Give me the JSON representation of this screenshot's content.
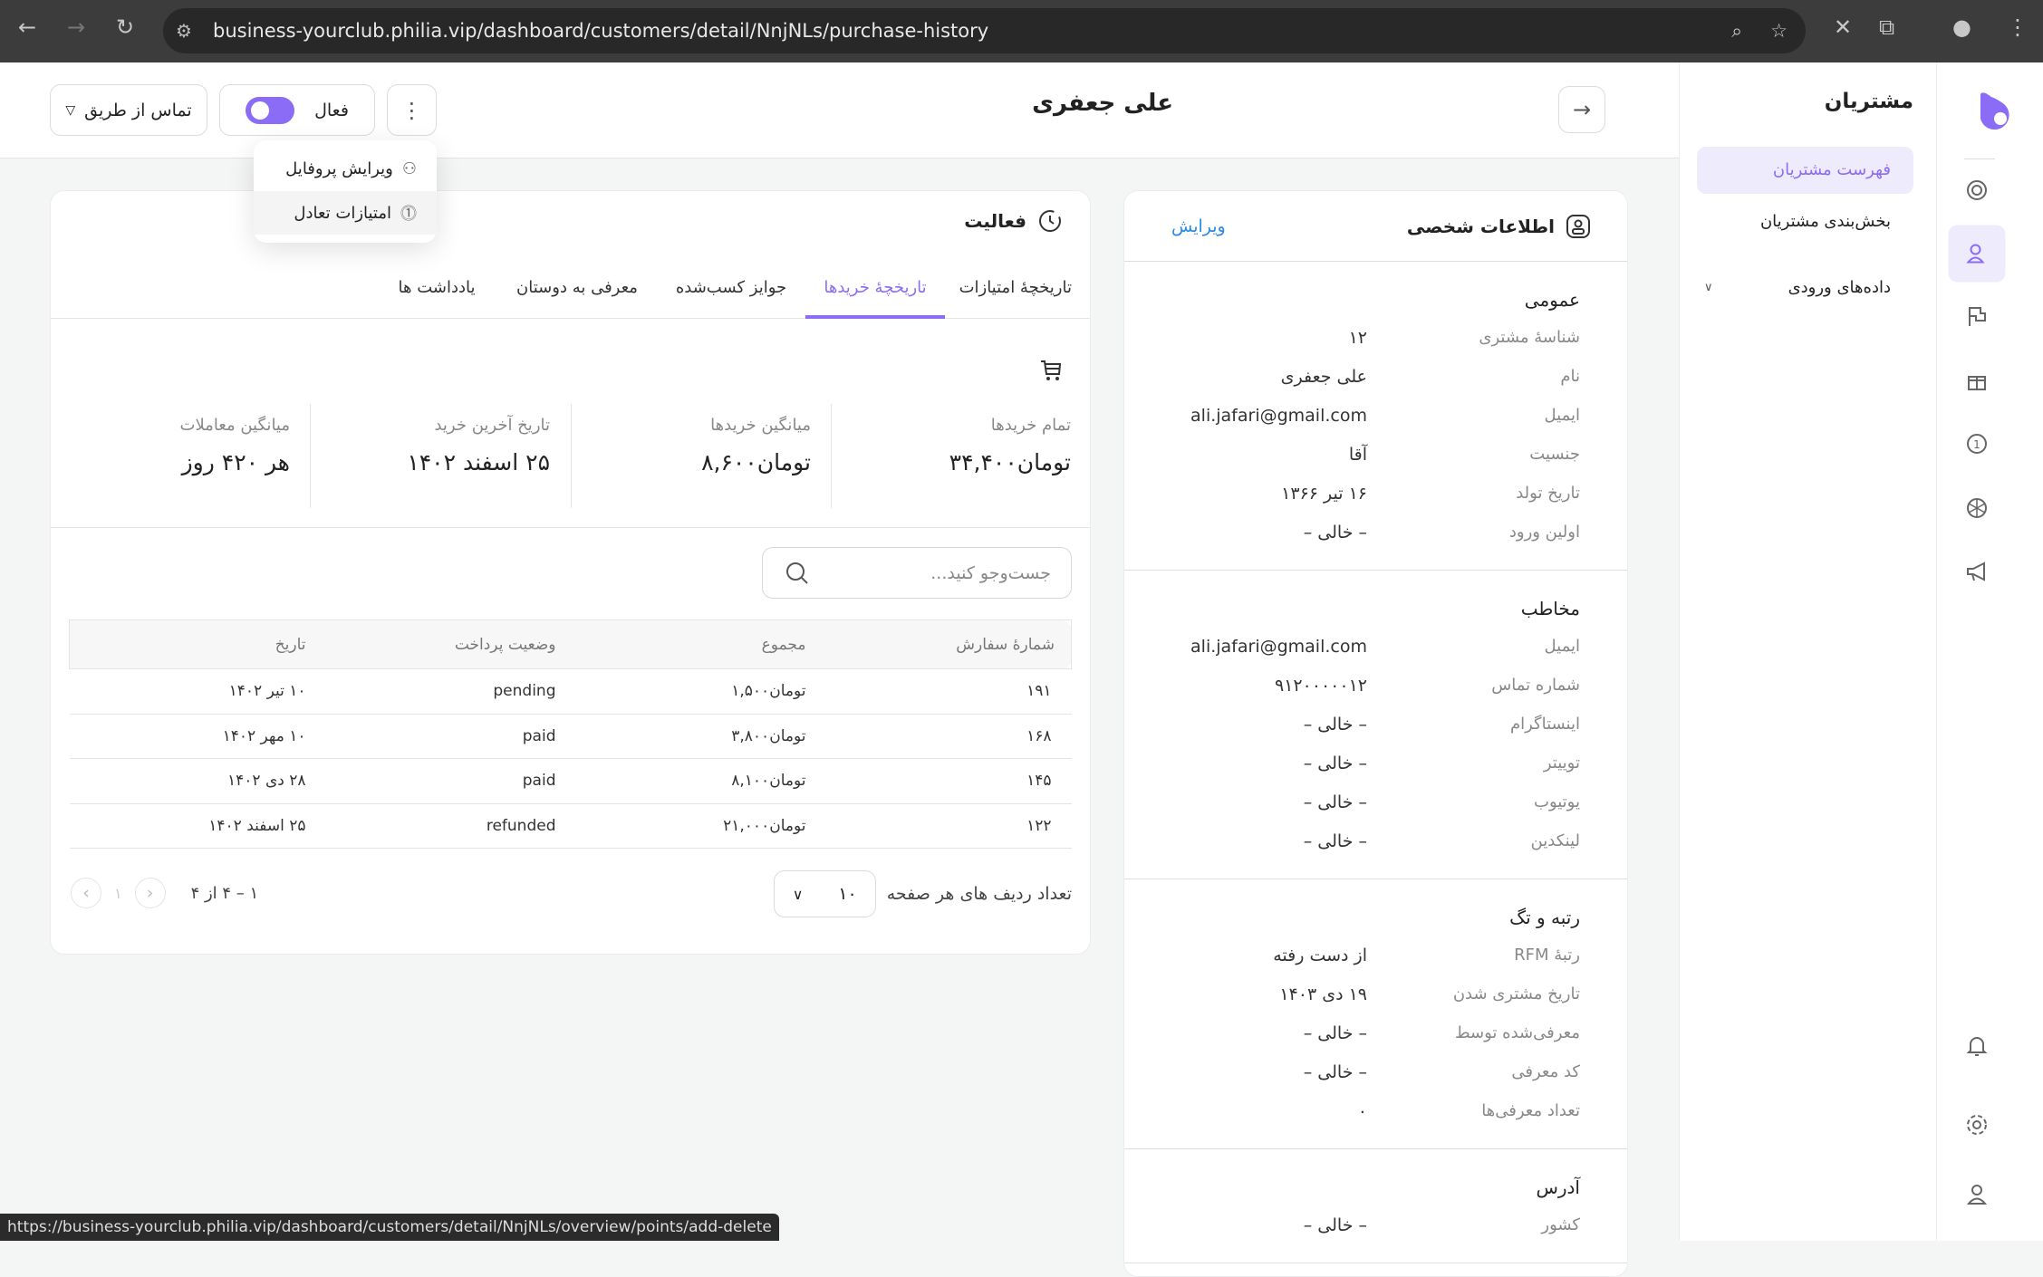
{
  "browser": {
    "url": "business-yourclub.philia.vip/dashboard/customers/detail/NnjNLs/purchase-history",
    "status_url": "https://business-yourclub.philia.vip/dashboard/customers/detail/NnjNLs/overview/points/add-delete"
  },
  "colors": {
    "accent": "#8b6cf6",
    "accent_bg": "#eeebfd",
    "link": "#2b8ae8"
  },
  "header": {
    "customer_name": "علی جعفری",
    "contact_via": "تماس از طریق",
    "status_label": "فعال",
    "status_active": true
  },
  "menu": {
    "items": [
      {
        "label": "ویرایش پروفایل",
        "icon": "user-edit-icon"
      },
      {
        "label": "امتیازات تعادل",
        "icon": "points-icon"
      }
    ]
  },
  "sidebar": {
    "title": "مشتریان",
    "items": [
      {
        "label": "فهرست مشتریان",
        "active": true
      },
      {
        "label": "بخش‌بندی مشتریان"
      },
      {
        "label": "داده‌های ورودی",
        "expandable": true
      }
    ]
  },
  "rail": {
    "icons": [
      "logo",
      "dashboard-icon",
      "customers-icon",
      "campaign-flag-icon",
      "gift-icon",
      "points-icon",
      "wheel-icon",
      "megaphone-icon",
      "bell-icon",
      "settings-icon",
      "profile-icon"
    ]
  },
  "personal": {
    "title": "اطلاعات شخصی",
    "edit": "ویرایش",
    "sections": [
      {
        "title": "عمومی",
        "rows": [
          [
            "شناسهٔ مشتری",
            "۱۲"
          ],
          [
            "نام",
            "علی جعفری"
          ],
          [
            "ایمیل",
            "ali.jafari@gmail.com"
          ],
          [
            "جنسیت",
            "آقا"
          ],
          [
            "تاریخ تولد",
            "۱۶ تیر ۱۳۶۶"
          ],
          [
            "اولین ورود",
            "– خالی –"
          ]
        ]
      },
      {
        "title": "مخاطب",
        "rows": [
          [
            "ایمیل",
            "ali.jafari@gmail.com"
          ],
          [
            "شماره تماس",
            "۹۱۲۰۰۰۰۰۱۲"
          ],
          [
            "اینستاگرام",
            "– خالی –"
          ],
          [
            "توییتر",
            "– خالی –"
          ],
          [
            "یوتیوب",
            "– خالی –"
          ],
          [
            "لینکدین",
            "– خالی –"
          ]
        ]
      },
      {
        "title": "رتبه و تگ",
        "rows": [
          [
            "رتبهٔ RFM",
            "از دست رفته"
          ],
          [
            "تاریخ مشتری شدن",
            "۱۹ دی ۱۴۰۳"
          ],
          [
            "معرفی‌شده توسط",
            "– خالی –"
          ],
          [
            "کد معرفی",
            "– خالی –"
          ],
          [
            "تعداد معرفی‌ها",
            "۰"
          ]
        ]
      },
      {
        "title": "آدرس",
        "rows": [
          [
            "کشور",
            "– خالی –"
          ]
        ]
      }
    ]
  },
  "activity": {
    "title": "فعالیت",
    "tabs": [
      "تاریخچهٔ امتیازات",
      "تاریخچهٔ خریدها",
      "جوایز کسب‌شده",
      "معرفی به دوستان",
      "یادداشت ها"
    ],
    "active_tab": 1,
    "stats": [
      {
        "label": "تمام خریدها",
        "value": "تومان۳۴,۴۰۰"
      },
      {
        "label": "میانگین خریدها",
        "value": "تومان۸,۶۰۰"
      },
      {
        "label": "تاریخ آخرین خرید",
        "value": "۲۵ اسفند ۱۴۰۲"
      },
      {
        "label": "میانگین معاملات",
        "value": "هر ۴۲۰ روز"
      }
    ],
    "search_placeholder": "جست‌وجو کنید...",
    "table": {
      "headers": [
        "شمارهٔ سفارش",
        "مجموع",
        "وضعیت پرداخت",
        "تاریخ"
      ],
      "rows": [
        [
          "۱۹۱",
          "تومان۱,۵۰۰",
          "pending",
          "۱۰ تیر ۱۴۰۲"
        ],
        [
          "۱۶۸",
          "تومان۳,۸۰۰",
          "paid",
          "۱۰ مهر ۱۴۰۲"
        ],
        [
          "۱۴۵",
          "تومان۸,۱۰۰",
          "paid",
          "۲۸ دی ۱۴۰۲"
        ],
        [
          "۱۲۲",
          "تومان۲۱,۰۰۰",
          "refunded",
          "۲۵ اسفند ۱۴۰۲"
        ]
      ]
    },
    "pagination": {
      "rows_per_page_label": "تعداد ردیف های هر صفحه",
      "rows_per_page": "۱۰",
      "range": "۱ – ۴ از ۴",
      "current_page": "۱"
    }
  }
}
